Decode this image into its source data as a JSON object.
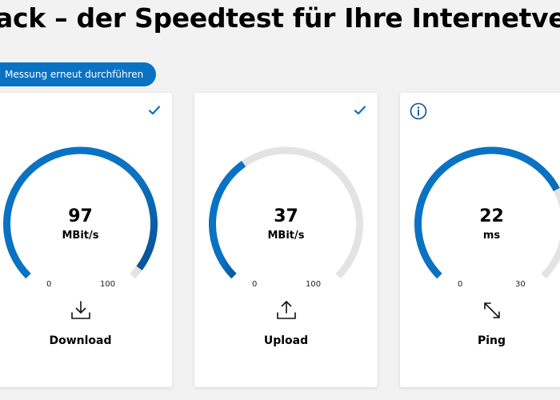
{
  "header": {
    "title": "ack – der Speedtest für Ihre Internetverbindung"
  },
  "actions": {
    "rerun_label": "Messung erneut durchführen"
  },
  "colors": {
    "accent": "#0a72c2",
    "accent_dark": "#0a4f91",
    "track": "#e3e3e3",
    "card": "#ffffff",
    "background": "#f2f2f2"
  },
  "cards": [
    {
      "id": "download",
      "label": "Download",
      "value": "97",
      "unit": "MBit/s",
      "scale_min": "0",
      "scale_max": "100",
      "fill_fraction": 0.97,
      "icon": "download-icon",
      "status_icon": "check-icon"
    },
    {
      "id": "upload",
      "label": "Upload",
      "value": "37",
      "unit": "MBit/s",
      "scale_min": "0",
      "scale_max": "100",
      "fill_fraction": 0.37,
      "icon": "upload-icon",
      "status_icon": "check-icon"
    },
    {
      "id": "ping",
      "label": "Ping",
      "value": "22",
      "unit": "ms",
      "scale_min": "0",
      "scale_max": "30",
      "fill_fraction": 0.73,
      "icon": "ping-icon",
      "status_icon": "info-icon"
    }
  ]
}
